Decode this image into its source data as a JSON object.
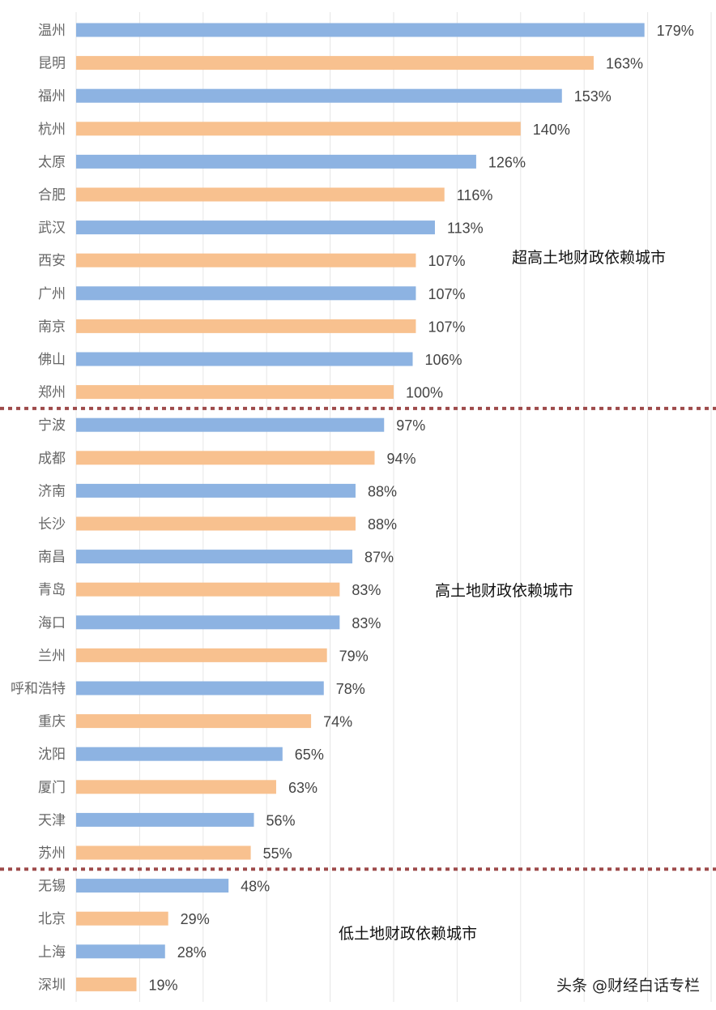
{
  "chart_data": {
    "type": "bar",
    "orientation": "horizontal",
    "categories": [
      "温州",
      "昆明",
      "福州",
      "杭州",
      "太原",
      "合肥",
      "武汉",
      "西安",
      "广州",
      "南京",
      "佛山",
      "郑州",
      "宁波",
      "成都",
      "济南",
      "长沙",
      "南昌",
      "青岛",
      "海口",
      "兰州",
      "呼和浩特",
      "重庆",
      "沈阳",
      "厦门",
      "天津",
      "苏州",
      "无锡",
      "北京",
      "上海",
      "深圳"
    ],
    "values": [
      179,
      163,
      153,
      140,
      126,
      116,
      113,
      107,
      107,
      107,
      106,
      100,
      97,
      94,
      88,
      88,
      87,
      83,
      83,
      79,
      78,
      74,
      65,
      63,
      56,
      55,
      48,
      29,
      28,
      19
    ],
    "value_labels": [
      "179%",
      "163%",
      "153%",
      "140%",
      "126%",
      "116%",
      "113%",
      "107%",
      "107%",
      "107%",
      "106%",
      "100%",
      "97%",
      "94%",
      "88%",
      "88%",
      "87%",
      "83%",
      "83%",
      "79%",
      "78%",
      "74%",
      "65%",
      "63%",
      "56%",
      "55%",
      "48%",
      "29%",
      "28%",
      "19%"
    ],
    "xlim": [
      0,
      200
    ],
    "grid": true,
    "grid_step": 20,
    "bar_colors_alternating": [
      "#8db3e2",
      "#f8c18f"
    ],
    "separator_color": "#9e4b4b",
    "separators_after": [
      "郑州",
      "苏州"
    ],
    "annotations": [
      "超高土地财政依赖城市",
      "高土地财政依赖城市",
      "低土地财政依赖城市"
    ]
  },
  "watermark": "头条 @财经白话专栏"
}
